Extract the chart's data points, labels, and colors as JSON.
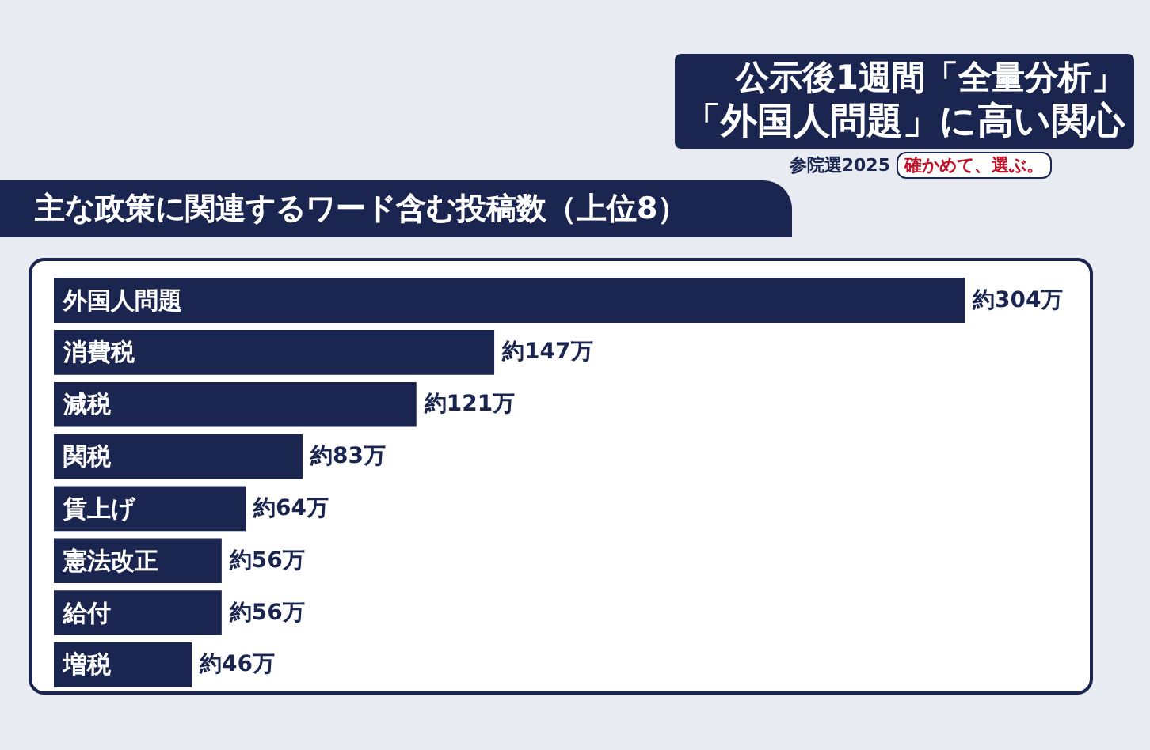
{
  "chart_data": {
    "type": "bar",
    "orientation": "horizontal",
    "title": "主な政策に関連するワード含む投稿数（上位8）",
    "subtitle": "「外国人問題」に高い関心",
    "annotations": [
      "公示後1週間「全量分析」",
      "参院選2025",
      "確かめて、選ぶ。"
    ],
    "categories": [
      "外国人問題",
      "消費税",
      "減税",
      "関税",
      "賃上げ",
      "憲法改正",
      "給付",
      "増税"
    ],
    "values": [
      304,
      147,
      121,
      83,
      64,
      56,
      56,
      46
    ],
    "value_labels": [
      "約304万",
      "約147万",
      "約121万",
      "約83万",
      "約64万",
      "約56万",
      "約56万",
      "約46万"
    ],
    "color": "#1b2650"
  }
}
